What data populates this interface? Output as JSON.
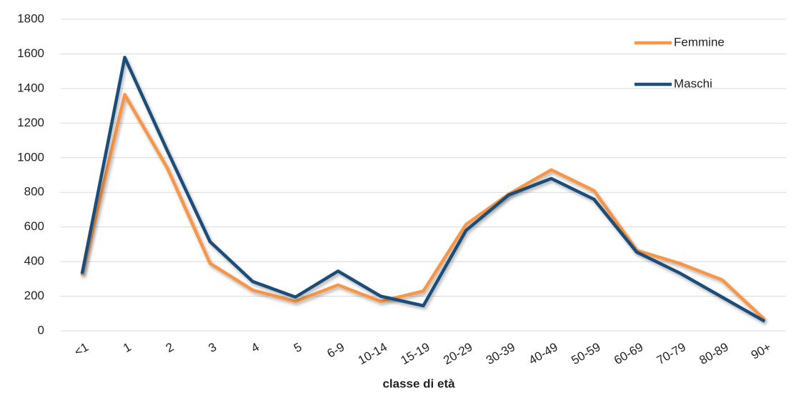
{
  "chart_data": {
    "type": "line",
    "x_label": "classe di età",
    "categories": [
      "<1",
      "1",
      "2",
      "3",
      "4",
      "5",
      "6-9",
      "10-14",
      "15-19",
      "20-29",
      "30-39",
      "40-49",
      "50-59",
      "60-69",
      "70-79",
      "80-89",
      "90+"
    ],
    "series": [
      {
        "name": "Femmine",
        "color": "#f79646",
        "values": [
          320,
          1365,
          940,
          390,
          235,
          170,
          265,
          170,
          230,
          615,
          790,
          930,
          810,
          465,
          390,
          295,
          65
        ]
      },
      {
        "name": "Maschi",
        "color": "#1f4e79",
        "values": [
          330,
          1580,
          1040,
          515,
          285,
          195,
          345,
          200,
          145,
          580,
          785,
          880,
          760,
          455,
          335,
          195,
          55
        ]
      }
    ],
    "ylim": [
      0,
      1800
    ],
    "yticks": [
      0,
      200,
      400,
      600,
      800,
      1000,
      1200,
      1400,
      1600,
      1800
    ],
    "grid": true,
    "legend": "top-right"
  }
}
